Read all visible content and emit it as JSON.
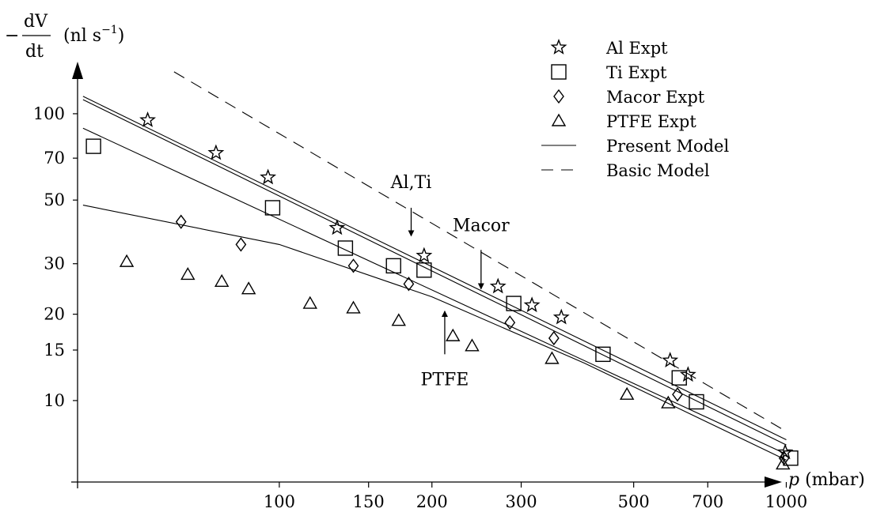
{
  "chart_data": {
    "type": "scatter",
    "xscale": "log",
    "yscale": "log",
    "xlim": [
      40,
      1100
    ],
    "ylim": [
      5.2,
      150
    ],
    "grid": false,
    "legend_position": "top-right",
    "xlabel": {
      "var": "p",
      "unit": " (mbar)"
    },
    "ylabel": {
      "minus": "−",
      "num": "dV",
      "den": "dt",
      "unit": "(nl s",
      "exp": "−1",
      "close": ")"
    },
    "x_ticks": [
      {
        "v": 100,
        "label": "100"
      },
      {
        "v": 150,
        "label": "150"
      },
      {
        "v": 200,
        "label": "200"
      },
      {
        "v": 300,
        "label": "300"
      },
      {
        "v": 500,
        "label": "500"
      },
      {
        "v": 700,
        "label": "700"
      },
      {
        "v": 1000,
        "label": "1000"
      }
    ],
    "y_ticks": [
      {
        "v": 10,
        "label": "10"
      },
      {
        "v": 15,
        "label": "15"
      },
      {
        "v": 20,
        "label": "20"
      },
      {
        "v": 30,
        "label": "30"
      },
      {
        "v": 50,
        "label": "50"
      },
      {
        "v": 70,
        "label": "70"
      },
      {
        "v": 100,
        "label": "100"
      }
    ],
    "series": [
      {
        "name": "Al Expt",
        "marker": "star",
        "points": [
          [
            55,
            95
          ],
          [
            75,
            73
          ],
          [
            95,
            60
          ],
          [
            130,
            40
          ],
          [
            193,
            32
          ],
          [
            270,
            25
          ],
          [
            315,
            21.5
          ],
          [
            360,
            19.5
          ],
          [
            590,
            13.8
          ],
          [
            640,
            12.3
          ],
          [
            995,
            6.6
          ]
        ]
      },
      {
        "name": "Ti Expt",
        "marker": "square",
        "points": [
          [
            43,
            77
          ],
          [
            97,
            47
          ],
          [
            135,
            34
          ],
          [
            168,
            29.5
          ],
          [
            193,
            28.5
          ],
          [
            290,
            21.8
          ],
          [
            435,
            14.5
          ],
          [
            615,
            12
          ],
          [
            665,
            9.9
          ],
          [
            1020,
            6.3
          ]
        ]
      },
      {
        "name": "Macor Expt",
        "marker": "diamond",
        "points": [
          [
            64,
            42
          ],
          [
            84,
            35
          ],
          [
            140,
            29.5
          ],
          [
            180,
            25.5
          ],
          [
            285,
            18.7
          ],
          [
            348,
            16.5
          ],
          [
            610,
            10.5
          ],
          [
            990,
            6.3
          ]
        ]
      },
      {
        "name": "PTFE Expt",
        "marker": "triangle",
        "points": [
          [
            50,
            30.5
          ],
          [
            66,
            27.5
          ],
          [
            77,
            26
          ],
          [
            87,
            24.5
          ],
          [
            115,
            21.8
          ],
          [
            140,
            21
          ],
          [
            172,
            19
          ],
          [
            220,
            16.8
          ],
          [
            240,
            15.5
          ],
          [
            345,
            14
          ],
          [
            485,
            10.5
          ],
          [
            585,
            9.8
          ],
          [
            985,
            6
          ]
        ]
      }
    ],
    "lines": [
      {
        "name": "Present Model",
        "style": "solid",
        "points": [
          [
            41,
            115
          ],
          [
            1000,
            7.3
          ]
        ]
      },
      {
        "name": "Present Model",
        "style": "solid",
        "points": [
          [
            41,
            112
          ],
          [
            1000,
            7.0
          ]
        ]
      },
      {
        "name": "Present Model",
        "style": "solid",
        "points": [
          [
            41,
            89
          ],
          [
            1000,
            6.5
          ]
        ]
      },
      {
        "name": "Present Model",
        "style": "solid",
        "points": [
          [
            41,
            48
          ],
          [
            100,
            35
          ],
          [
            200,
            23
          ],
          [
            400,
            13.5
          ],
          [
            1000,
            6.2
          ]
        ]
      },
      {
        "name": "Basic Model",
        "style": "dashed",
        "points": [
          [
            62,
            140
          ],
          [
            1000,
            7.8
          ]
        ]
      }
    ],
    "legend": [
      {
        "symbol": "star",
        "label": "Al Expt"
      },
      {
        "symbol": "square",
        "label": "Ti Expt"
      },
      {
        "symbol": "diamond",
        "label": "Macor Expt"
      },
      {
        "symbol": "triangle",
        "label": "PTFE Expt"
      },
      {
        "symbol": "solid",
        "label": "Present Model"
      },
      {
        "symbol": "dashed",
        "label": "Basic Model"
      }
    ],
    "annotations": [
      {
        "text": "Al,Ti",
        "tx": 182,
        "ty": 55,
        "ax": 182,
        "ay1": 47,
        "ay2": 37.5,
        "dir": "down"
      },
      {
        "text": "Macor",
        "tx": 250,
        "ty": 39,
        "ax": 250,
        "ay1": 33.5,
        "ay2": 24.5,
        "dir": "down"
      },
      {
        "text": "PTFE",
        "tx": 212,
        "ty": 11.3,
        "ax": 212,
        "ay1": 14.5,
        "ay2": 20.5,
        "dir": "up"
      }
    ]
  }
}
